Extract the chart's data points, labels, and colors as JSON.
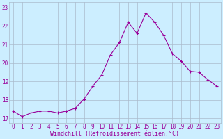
{
  "x": [
    0,
    1,
    2,
    3,
    4,
    5,
    6,
    7,
    8,
    9,
    10,
    11,
    12,
    13,
    14,
    15,
    16,
    17,
    18,
    19,
    20,
    21,
    22,
    23
  ],
  "y": [
    17.4,
    17.1,
    17.3,
    17.4,
    17.4,
    17.3,
    17.4,
    17.55,
    18.05,
    18.75,
    19.35,
    20.45,
    21.1,
    22.2,
    21.6,
    22.7,
    22.2,
    21.5,
    20.5,
    20.1,
    19.55,
    19.5,
    19.1,
    18.75
  ],
  "line_color": "#990099",
  "marker_color": "#990099",
  "bg_color": "#cceeff",
  "grid_color": "#aabbcc",
  "xlabel": "Windchill (Refroidissement éolien,°C)",
  "ylabel_ticks": [
    17,
    18,
    19,
    20,
    21,
    22,
    23
  ],
  "xlim": [
    -0.5,
    23.5
  ],
  "ylim": [
    16.75,
    23.3
  ],
  "xticks": [
    0,
    1,
    2,
    3,
    4,
    5,
    6,
    7,
    8,
    9,
    10,
    11,
    12,
    13,
    14,
    15,
    16,
    17,
    18,
    19,
    20,
    21,
    22,
    23
  ],
  "tick_fontsize": 5.5,
  "xlabel_fontsize": 6.0,
  "ylabel_fontsize": 5.5,
  "linewidth": 0.8,
  "markersize": 2.2
}
